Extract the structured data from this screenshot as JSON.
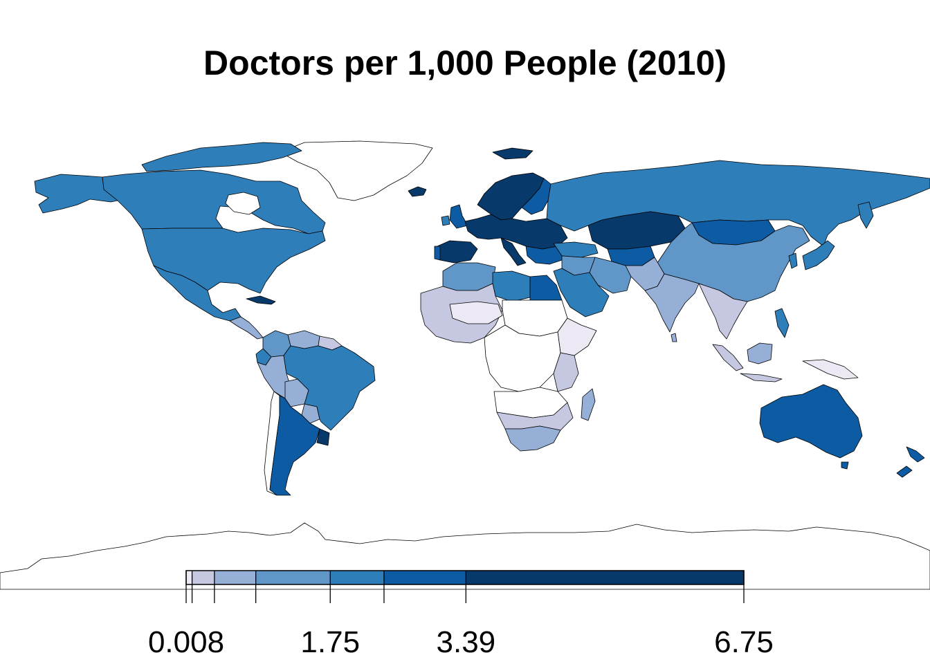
{
  "title": "Doctors per 1,000 People (2010)",
  "legend": {
    "min": 0.008,
    "max": 6.75,
    "bins": [
      {
        "from": 0.008,
        "to": 0.08,
        "color": "#ECE9F4"
      },
      {
        "from": 0.08,
        "to": 0.35,
        "color": "#C6C8E2"
      },
      {
        "from": 0.35,
        "to": 0.85,
        "color": "#96AFD6"
      },
      {
        "from": 0.85,
        "to": 1.75,
        "color": "#6097C8"
      },
      {
        "from": 1.75,
        "to": 2.4,
        "color": "#2E7EBA"
      },
      {
        "from": 2.4,
        "to": 3.39,
        "color": "#0D5BA3"
      },
      {
        "from": 3.39,
        "to": 6.75,
        "color": "#08396B"
      }
    ],
    "tick_values": [
      0.008,
      0.08,
      0.35,
      0.85,
      1.75,
      2.4,
      3.39,
      6.75
    ],
    "tick_labels": [
      {
        "value": 0.008,
        "text": "0.008"
      },
      {
        "value": 1.75,
        "text": "1.75"
      },
      {
        "value": 3.39,
        "text": "3.39"
      },
      {
        "value": 6.75,
        "text": "6.75"
      }
    ]
  },
  "colors": {
    "no_data": "#FFFFFF",
    "border": "#000000"
  }
}
